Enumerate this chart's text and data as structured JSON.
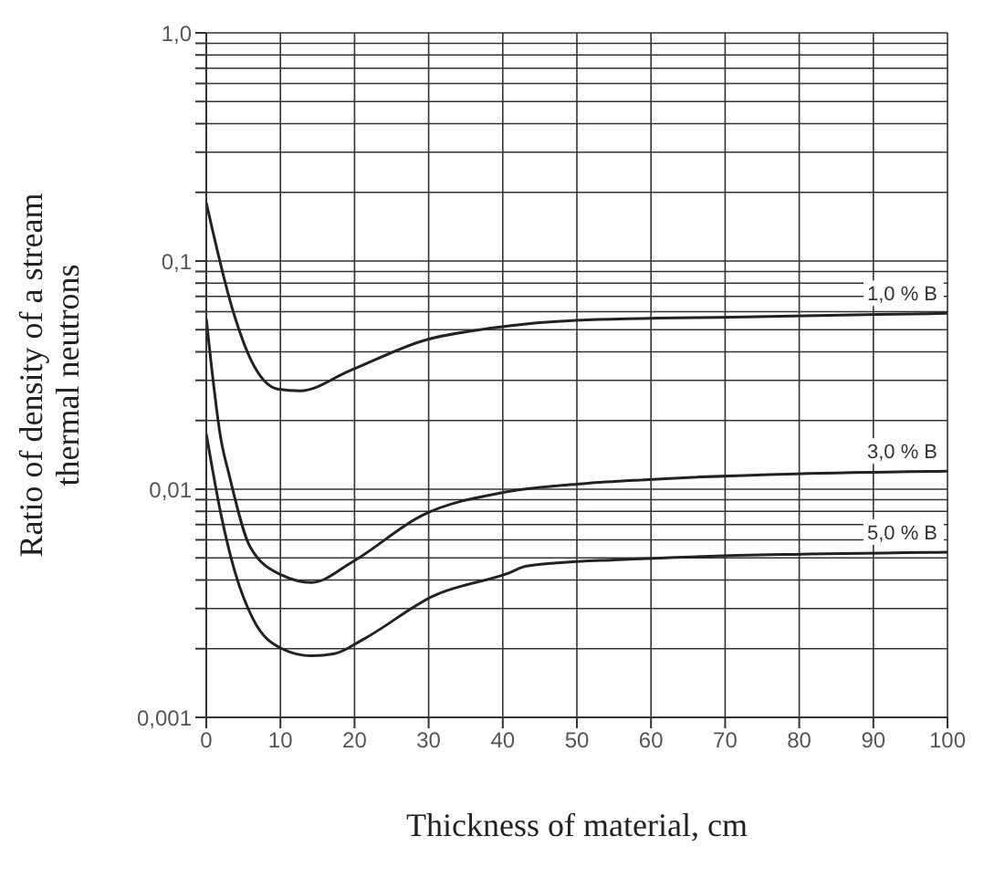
{
  "chart_data": {
    "type": "line",
    "xlabel": "Thickness of material, cm",
    "ylabel": "Ratio of density of a stream\nthermal neutrons",
    "log": "y",
    "grid": true,
    "legend": false,
    "marker": "none",
    "line_style": "solid",
    "xlim": [
      0,
      100
    ],
    "xticks": [
      0,
      10,
      20,
      30,
      40,
      50,
      60,
      70,
      80,
      90,
      100
    ],
    "ylim": [
      0.001,
      1
    ],
    "yticks": [
      {
        "value": 0.001,
        "label": "0,001"
      },
      {
        "value": 0.002,
        "label": null
      },
      {
        "value": 0.003,
        "label": null
      },
      {
        "value": 0.004,
        "label": null
      },
      {
        "value": 0.005,
        "label": null
      },
      {
        "value": 0.006,
        "label": null
      },
      {
        "value": 0.007,
        "label": null
      },
      {
        "value": 0.008,
        "label": null
      },
      {
        "value": 0.009,
        "label": null
      },
      {
        "value": 0.01,
        "label": "0,01"
      },
      {
        "value": 0.02,
        "label": null
      },
      {
        "value": 0.03,
        "label": null
      },
      {
        "value": 0.04,
        "label": null
      },
      {
        "value": 0.05,
        "label": null
      },
      {
        "value": 0.06,
        "label": null
      },
      {
        "value": 0.07,
        "label": null
      },
      {
        "value": 0.08,
        "label": null
      },
      {
        "value": 0.09,
        "label": null
      },
      {
        "value": 0.1,
        "label": "0,1"
      },
      {
        "value": 0.2,
        "label": null
      },
      {
        "value": 0.3,
        "label": null
      },
      {
        "value": 0.4,
        "label": null
      },
      {
        "value": 0.5,
        "label": null
      },
      {
        "value": 0.6,
        "label": null
      },
      {
        "value": 0.7,
        "label": null
      },
      {
        "value": 0.8,
        "label": null
      },
      {
        "value": 0.9,
        "label": null
      },
      {
        "value": 1,
        "label": "1,0"
      }
    ],
    "series": [
      {
        "name": "1,0 % B",
        "color": "#222222",
        "x": [
          0,
          3.7,
          6,
          9.6,
          12.7,
          19.3,
          29.5,
          38.9,
          49.9,
          74.3,
          100
        ],
        "values": [
          0.18,
          0.059,
          0.037,
          0.0275,
          0.027,
          0.033,
          0.045,
          0.051,
          0.055,
          0.057,
          0.059
        ]
      },
      {
        "name": "3,0 % B",
        "color": "#222222",
        "x": [
          0,
          2,
          3.1,
          5.9,
          10.2,
          14.2,
          19.7,
          29.2,
          40.2,
          51.2,
          59.1,
          100
        ],
        "values": [
          0.056,
          0.0164,
          0.0115,
          0.0056,
          0.0042,
          0.0039,
          0.0048,
          0.0077,
          0.0097,
          0.0106,
          0.011,
          0.012
        ]
      },
      {
        "name": "5,0 % B",
        "color": "#222222",
        "x": [
          0,
          2,
          3.9,
          6.3,
          10.2,
          14.2,
          17.3,
          21.2,
          30.6,
          40.9,
          43.2,
          55,
          100
        ],
        "values": [
          0.0175,
          0.0077,
          0.0043,
          0.0027,
          0.002,
          0.00186,
          0.0019,
          0.0022,
          0.0034,
          0.0043,
          0.0046,
          0.0049,
          0.0053
        ]
      }
    ]
  }
}
